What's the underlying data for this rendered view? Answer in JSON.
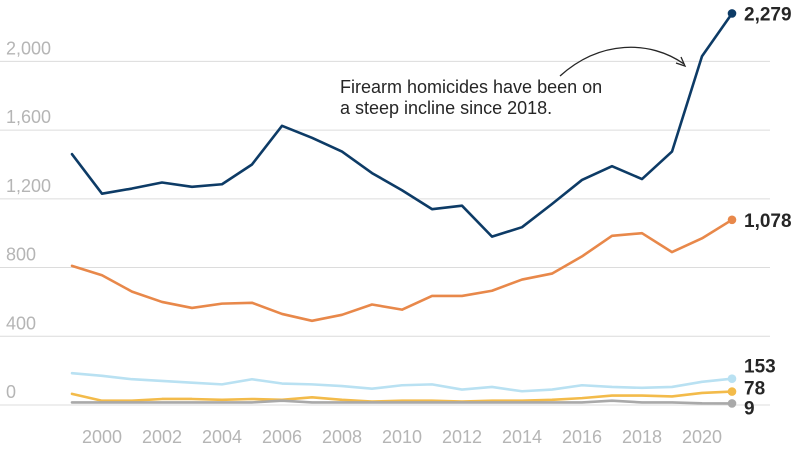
{
  "chart_data": {
    "type": "line",
    "x": [
      1999,
      2000,
      2001,
      2002,
      2003,
      2004,
      2005,
      2006,
      2007,
      2008,
      2009,
      2010,
      2011,
      2012,
      2013,
      2014,
      2015,
      2016,
      2017,
      2018,
      2019,
      2020,
      2021
    ],
    "xticks": [
      "2000",
      "2002",
      "2004",
      "2006",
      "2008",
      "2010",
      "2012",
      "2014",
      "2016",
      "2018",
      "2020"
    ],
    "xtick_values": [
      2000,
      2002,
      2004,
      2006,
      2008,
      2010,
      2012,
      2014,
      2016,
      2018,
      2020
    ],
    "yticks": [
      "0",
      "400",
      "800",
      "1,200",
      "1,600",
      "2,000"
    ],
    "ytick_values": [
      0,
      400,
      800,
      1200,
      1600,
      2000
    ],
    "ylim": [
      0,
      2300
    ],
    "xlim": [
      1999,
      2021
    ],
    "grid": true,
    "series": [
      {
        "color": "#0d3b66",
        "end_label": "2,279",
        "values": [
          1460,
          1230,
          1260,
          1295,
          1270,
          1285,
          1400,
          1625,
          1555,
          1475,
          1350,
          1250,
          1140,
          1160,
          980,
          1035,
          1170,
          1310,
          1390,
          1315,
          1475,
          2030,
          2279
        ]
      },
      {
        "color": "#e8884a",
        "end_label": "1,078",
        "values": [
          810,
          755,
          660,
          600,
          565,
          590,
          595,
          530,
          490,
          525,
          585,
          555,
          635,
          635,
          665,
          730,
          765,
          865,
          985,
          1000,
          890,
          970,
          1078
        ]
      },
      {
        "color": "#b9e1f2",
        "end_label": "153",
        "values": [
          185,
          170,
          150,
          140,
          130,
          120,
          150,
          125,
          120,
          110,
          95,
          115,
          120,
          90,
          105,
          80,
          90,
          115,
          105,
          100,
          105,
          135,
          153
        ]
      },
      {
        "color": "#f3bb4a",
        "end_label": "78",
        "values": [
          65,
          25,
          25,
          35,
          35,
          30,
          35,
          30,
          45,
          30,
          20,
          25,
          25,
          20,
          25,
          25,
          30,
          40,
          55,
          55,
          50,
          70,
          78
        ]
      },
      {
        "color": "#a9a9a9",
        "end_label": "9",
        "values": [
          15,
          15,
          15,
          15,
          15,
          15,
          15,
          25,
          15,
          15,
          15,
          15,
          15,
          15,
          15,
          15,
          15,
          15,
          25,
          15,
          15,
          10,
          9
        ]
      }
    ],
    "annotation": {
      "lines": [
        "Firearm homicides have been on",
        "a steep incline since 2018."
      ]
    }
  }
}
